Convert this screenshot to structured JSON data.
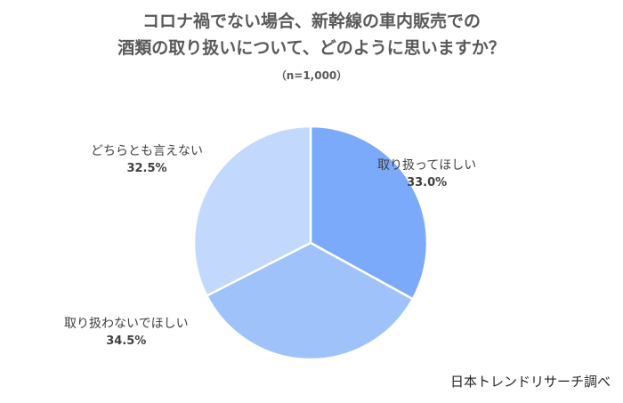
{
  "chart_data": {
    "type": "pie",
    "title_line1": "コロナ禍でない場合、新幹線の車内販売での",
    "title_line2": "酒類の取り扱いについて、どのように思いますか？",
    "subtitle": "（n=1,000）",
    "slices": [
      {
        "label": "取り扱ってほしい",
        "value": 33.0,
        "display": "33.0%",
        "color": "#7aaaf9"
      },
      {
        "label": "取り扱わないでほしい",
        "value": 34.5,
        "display": "34.5%",
        "color": "#9fc2fa"
      },
      {
        "label": "どちらとも言えない",
        "value": 32.5,
        "display": "32.5%",
        "color": "#c2d8fc"
      }
    ],
    "source": "日本トレンドリサーチ調べ"
  }
}
